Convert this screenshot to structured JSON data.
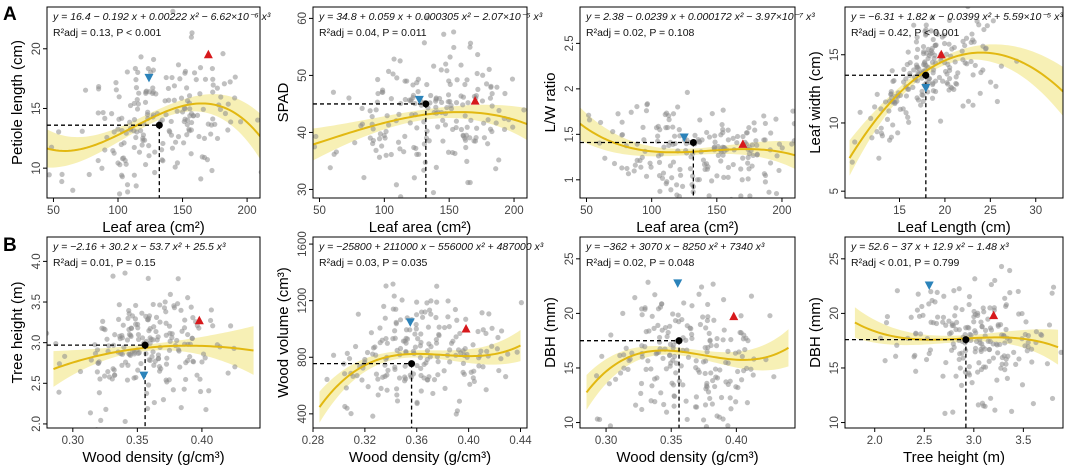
{
  "panel_letters": [
    "A",
    "B"
  ],
  "colors": {
    "points": "#8c8c8c",
    "curve": "#e2b811",
    "band": "#f6eda8",
    "dashed": "#000000",
    "up_marker": "#d7191c",
    "down_marker": "#2b83ba",
    "mean_marker": "#000000"
  },
  "chart_data": [
    {
      "type": "scatter",
      "title": "",
      "equation_line1": "y = 16.4 − 0.192 x + 0.00222 x² − 6.62×10⁻⁶ x³",
      "equation_line2": "R²adj = 0.13, P < 0.001",
      "xlabel": "Leaf area (cm²)",
      "ylabel": "Petiole length (cm)",
      "xlim": [
        45,
        210
      ],
      "ylim": [
        7.5,
        23.5
      ],
      "xticks": [
        50,
        100,
        150,
        200
      ],
      "yticks": [
        10,
        15,
        20
      ],
      "coef": [
        16.4,
        -0.192,
        0.00222,
        -6.62e-06
      ],
      "fit_range": [
        45,
        210
      ],
      "band_halfwidth": [
        1.6,
        0.45,
        1.9
      ],
      "cloud": {
        "xc": 135,
        "sx": 35,
        "ysd": 3.0,
        "n": 200,
        "seed": 11
      },
      "mean_point": {
        "x": 132,
        "y": 13.6
      },
      "up_triangle": {
        "x": 170,
        "y": 19.5
      },
      "down_triangle": {
        "x": 124,
        "y": 17.6
      }
    },
    {
      "type": "scatter",
      "title": "",
      "equation_line1": "y = 34.8 + 0.059 x + 0.000305 x² − 2.07×10⁻⁶ x³",
      "equation_line2": "R²adj = 0.04, P = 0.011",
      "xlabel": "Leaf area (cm²)",
      "ylabel": "SPAD",
      "xlim": [
        45,
        210
      ],
      "ylim": [
        28.5,
        62
      ],
      "xticks": [
        50,
        100,
        150,
        200
      ],
      "yticks": [
        30,
        40,
        50,
        60
      ],
      "coef": [
        34.8,
        0.059,
        0.000305,
        -2.07e-06
      ],
      "fit_range": [
        45,
        210
      ],
      "band_halfwidth": [
        2.8,
        0.9,
        2.8
      ],
      "cloud": {
        "xc": 135,
        "sx": 35,
        "ysd": 5.5,
        "n": 200,
        "seed": 23
      },
      "mean_point": {
        "x": 132,
        "y": 45.0
      },
      "up_triangle": {
        "x": 170,
        "y": 45.5
      },
      "down_triangle": {
        "x": 127,
        "y": 45.8
      }
    },
    {
      "type": "scatter",
      "title": "",
      "equation_line1": "y = 2.38 − 0.0239 x + 0.000172 x² − 3.97×10⁻⁷ x³",
      "equation_line2": "R²adj = 0.02, P = 0.108",
      "xlabel": "Leaf area (cm²)",
      "ylabel": "L/W ratio",
      "xlim": [
        45,
        210
      ],
      "ylim": [
        0.8,
        2.9
      ],
      "xticks": [
        50,
        100,
        150,
        200
      ],
      "yticks": [
        1.0,
        1.5,
        2.0,
        2.5
      ],
      "coef": [
        2.38,
        -0.0239,
        0.000172,
        -3.97e-07
      ],
      "fit_range": [
        45,
        210
      ],
      "band_halfwidth": [
        0.18,
        0.035,
        0.15
      ],
      "cloud": {
        "xc": 135,
        "sx": 35,
        "ysd": 0.27,
        "n": 200,
        "seed": 37
      },
      "mean_point": {
        "x": 132,
        "y": 1.41
      },
      "up_triangle": {
        "x": 170,
        "y": 1.39
      },
      "down_triangle": {
        "x": 125,
        "y": 1.47
      }
    },
    {
      "type": "scatter",
      "title": "",
      "equation_line1": "y = −6.31 + 1.82 x − 0.0399 x² + 5.59×10⁻⁵ x³",
      "equation_line2": "R²adj = 0.42, P < 0.001",
      "xlabel": "Leaf Length (cm)",
      "ylabel": "Leaf width (cm)",
      "xlim": [
        9,
        33
      ],
      "ylim": [
        4.5,
        18.5
      ],
      "xticks": [
        15,
        20,
        25,
        30
      ],
      "yticks": [
        5,
        10,
        15
      ],
      "coef": [
        -6.31,
        1.82,
        -0.0399,
        5.59e-05
      ],
      "fit_range": [
        9.5,
        33
      ],
      "band_halfwidth": [
        1.3,
        0.3,
        1.8
      ],
      "cloud": {
        "xc": 18.5,
        "sx": 3.6,
        "ysd": 1.5,
        "n": 200,
        "seed": 41
      },
      "mean_point": {
        "x": 17.9,
        "y": 13.5
      },
      "up_triangle": {
        "x": 19.6,
        "y": 15.0
      },
      "down_triangle": {
        "x": 17.9,
        "y": 12.6
      }
    },
    {
      "type": "scatter",
      "title": "",
      "equation_line1": "y = −2.16 + 30.2 x − 53.7 x² + 25.5 x³",
      "equation_line2": "R²adj = 0.01, P = 0.15",
      "xlabel": "Wood density (g/cm³)",
      "ylabel": "Tree height (m)",
      "xlim": [
        0.28,
        0.445
      ],
      "ylim": [
        1.95,
        4.3
      ],
      "xticks": [
        0.3,
        0.35,
        0.4
      ],
      "yticks": [
        2.0,
        2.5,
        3.0,
        3.5,
        4.0
      ],
      "xtick_labels": [
        "0.30",
        "0.35",
        "0.40"
      ],
      "ytick_labels": [
        "2.0",
        "2.5",
        "3.0",
        "3.5",
        "4.0"
      ],
      "coef": [
        -2.16,
        30.2,
        -53.7,
        25.5
      ],
      "fit_range": [
        0.285,
        0.44
      ],
      "band_halfwidth": [
        0.22,
        0.04,
        0.3
      ],
      "cloud": {
        "xc": 0.36,
        "sx": 0.032,
        "ysd": 0.38,
        "n": 200,
        "seed": 53
      },
      "mean_point": {
        "x": 0.356,
        "y": 2.97
      },
      "up_triangle": {
        "x": 0.398,
        "y": 3.27
      },
      "down_triangle": {
        "x": 0.355,
        "y": 2.6
      }
    },
    {
      "type": "scatter",
      "title": "",
      "equation_line1": "y = −25800 + 211000 x − 556000 x² + 487000 x³",
      "equation_line2": "R²adj = 0.03, P = 0.035",
      "xlabel": "Wood density (g/cm³)",
      "ylabel": "Wood volume (cm³)",
      "xlim": [
        0.28,
        0.445
      ],
      "ylim": [
        300,
        1650
      ],
      "xticks": [
        0.28,
        0.32,
        0.36,
        0.4,
        0.44
      ],
      "yticks": [
        400,
        800,
        1200,
        1600
      ],
      "xtick_labels": [
        "0.28",
        "0.32",
        "0.36",
        "0.40",
        "0.44"
      ],
      "ytick_labels": [
        "400",
        "800",
        "1200",
        "1600"
      ],
      "coef": [
        -25800,
        211000,
        -556000,
        487000
      ],
      "fit_range": [
        0.285,
        0.44
      ],
      "band_halfwidth": [
        110,
        25,
        110
      ],
      "cloud": {
        "xc": 0.36,
        "sx": 0.032,
        "ysd": 190,
        "n": 200,
        "seed": 67
      },
      "mean_point": {
        "x": 0.356,
        "y": 755
      },
      "up_triangle": {
        "x": 0.398,
        "y": 1000
      },
      "down_triangle": {
        "x": 0.355,
        "y": 1050
      }
    },
    {
      "type": "scatter",
      "title": "",
      "equation_line1": "y = −362 + 3070 x − 8250 x² + 7340 x³",
      "equation_line2": "R²adj = 0.02, P = 0.048",
      "xlabel": "Wood density (g/cm³)",
      "ylabel": "DBH (mm)",
      "xlim": [
        0.28,
        0.445
      ],
      "ylim": [
        9.5,
        27
      ],
      "xticks": [
        0.3,
        0.35,
        0.4
      ],
      "yticks": [
        10,
        15,
        20,
        25
      ],
      "xtick_labels": [
        "0.30",
        "0.35",
        "0.40"
      ],
      "ytick_labels": [
        "10",
        "15",
        "20",
        "25"
      ],
      "coef": [
        -362,
        3070,
        -8250,
        7340
      ],
      "fit_range": [
        0.285,
        0.44
      ],
      "band_halfwidth": [
        1.6,
        0.35,
        1.7
      ],
      "cloud": {
        "xc": 0.36,
        "sx": 0.032,
        "ysd": 3.0,
        "n": 200,
        "seed": 79
      },
      "mean_point": {
        "x": 0.356,
        "y": 17.5
      },
      "up_triangle": {
        "x": 0.398,
        "y": 19.7
      },
      "down_triangle": {
        "x": 0.355,
        "y": 22.8
      }
    },
    {
      "type": "scatter",
      "title": "",
      "equation_line1": "y = 52.6 − 37 x + 12.9 x² − 1.48 x³",
      "equation_line2": "R²adj < 0.01, P = 0.799",
      "xlabel": "Tree height (m)",
      "ylabel": "DBH (mm)",
      "xlim": [
        1.7,
        3.9
      ],
      "ylim": [
        9.5,
        27
      ],
      "xticks": [
        2.0,
        2.5,
        3.0,
        3.5
      ],
      "yticks": [
        10,
        15,
        20,
        25
      ],
      "xtick_labels": [
        "2.0",
        "2.5",
        "3.0",
        "3.5"
      ],
      "ytick_labels": [
        "10",
        "15",
        "20",
        "25"
      ],
      "coef": [
        52.6,
        -37,
        12.9,
        -1.48
      ],
      "fit_range": [
        1.8,
        3.85
      ],
      "band_halfwidth": [
        1.4,
        0.3,
        1.6
      ],
      "cloud": {
        "xc": 2.95,
        "sx": 0.42,
        "ysd": 3.0,
        "n": 200,
        "seed": 97
      },
      "mean_point": {
        "x": 2.92,
        "y": 17.6
      },
      "up_triangle": {
        "x": 3.2,
        "y": 19.8
      },
      "down_triangle": {
        "x": 2.55,
        "y": 22.6
      }
    }
  ]
}
